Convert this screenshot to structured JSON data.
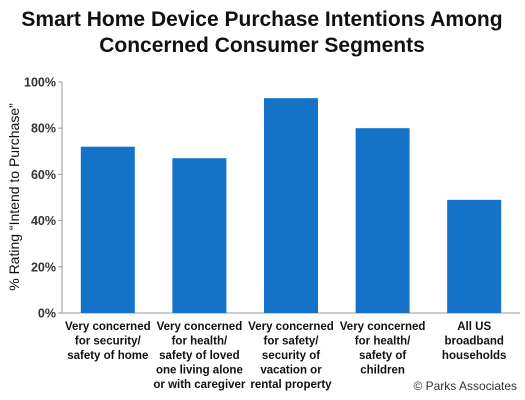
{
  "chart_data": {
    "type": "bar",
    "title": "Smart Home Device Purchase Intentions Among Concerned Consumer Segments",
    "title_lines": [
      "Smart Home Device Purchase Intentions Among",
      "Concerned Consumer Segments"
    ],
    "ylabel": "% Rating “Intend to Purchase”",
    "xlabel": "",
    "ylim": [
      0,
      100
    ],
    "yticks": [
      "0%",
      "20%",
      "40%",
      "60%",
      "80%",
      "100%"
    ],
    "categories": [
      [
        "Very concerned",
        "for security/",
        "safety of home"
      ],
      [
        "Very concerned",
        "for health/",
        "safety of loved",
        "one living alone",
        "or with caregiver"
      ],
      [
        "Very concerned",
        "for safety/",
        "security of",
        "vacation or",
        "rental property"
      ],
      [
        "Very concerned",
        "for health/",
        "safety of",
        "children"
      ],
      [
        "All US",
        "broadband",
        "households"
      ]
    ],
    "values": [
      72,
      67,
      93,
      80,
      49
    ],
    "bar_color": "#1473c6",
    "grid": false,
    "legend": "none",
    "source": "© Parks Associates"
  }
}
